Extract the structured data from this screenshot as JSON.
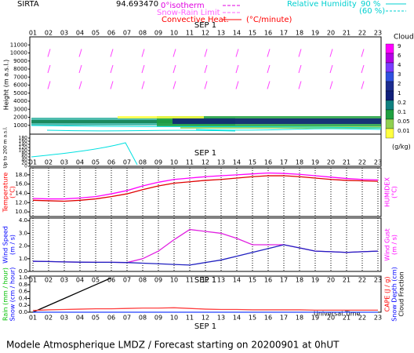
{
  "header": {
    "station": "SIRTA",
    "code": "94.693470",
    "isotherm": "0°isotherm",
    "snow_rain": "Snow-Rain Limit",
    "convective": "Convective Heat.",
    "convective_unit": "(°C/minute)",
    "rh": "Relative Humidity",
    "rh_high": "90 %",
    "rh_low": "(60 %)"
  },
  "date_label": "SEP  1",
  "time_label": "Universal Time",
  "footer": "Modele Atmospherique LMDZ / Forecast starting on 20200901 at 0hUT",
  "chart_data": [
    {
      "type": "contour",
      "categories": [
        "01",
        "02",
        "03",
        "04",
        "05",
        "06",
        "07",
        "08",
        "09",
        "10",
        "11",
        "12",
        "13",
        "14",
        "15",
        "16",
        "17",
        "18",
        "19",
        "20",
        "21",
        "22",
        "23"
      ],
      "ylabel": "Height  (m a.s.l.)",
      "ylim": [
        0,
        12000
      ],
      "yticks": [
        1000,
        2000,
        3000,
        4000,
        5000,
        6000,
        7000,
        8000,
        9000,
        10000,
        11000
      ],
      "low_label": "Up to 200 m a.s.l.",
      "low_ylim": [
        0,
        200
      ],
      "low_yticks": [
        0,
        20,
        40,
        60,
        80,
        100,
        120,
        140,
        160,
        180
      ],
      "colorbar_title": "Clouds",
      "colorbar_unit": "(g/kg)",
      "colorbar_levels": [
        9,
        6,
        4,
        3,
        2,
        1,
        0.2,
        0.1,
        0.05,
        0.01
      ],
      "colorbar_colors": [
        "#ff00ff",
        "#b400e6",
        "#7a3cff",
        "#3050e0",
        "#1c2c90",
        "#10207a",
        "#108080",
        "#20a040",
        "#90d050",
        "#ffff40"
      ]
    },
    {
      "type": "line",
      "categories": [
        "01",
        "02",
        "03",
        "04",
        "05",
        "06",
        "07",
        "08",
        "09",
        "10",
        "11",
        "12",
        "13",
        "14",
        "15",
        "16",
        "17",
        "18",
        "19",
        "20",
        "21",
        "22",
        "23"
      ],
      "ylim": [
        9,
        19.5
      ],
      "yticks": [
        {
          "value": 10,
          "label": "10.0"
        },
        {
          "value": 12,
          "label": "12.0"
        },
        {
          "value": 14,
          "label": "14.0"
        },
        {
          "value": 16,
          "label": "16.0"
        },
        {
          "value": 18,
          "label": "18.0"
        }
      ],
      "grid": true,
      "left_labels": [
        {
          "text": "Temperature",
          "color": "#ff0000"
        },
        {
          "text": "(°C)",
          "color": "#ff0000"
        }
      ],
      "right_labels": [
        {
          "text": "HUMIDEX",
          "color": "#ff00ff"
        },
        {
          "text": "(°C)",
          "color": "#ff00ff"
        }
      ],
      "series": [
        {
          "color": "#ff00ff",
          "values": [
            12.9,
            12.8,
            12.8,
            13.0,
            13.3,
            13.9,
            14.6,
            15.6,
            16.4,
            17.0,
            17.3,
            17.6,
            17.8,
            18.0,
            18.2,
            18.4,
            18.3,
            18.1,
            17.8,
            17.5,
            17.2,
            17.0,
            16.9
          ]
        },
        {
          "color": "#e00000",
          "values": [
            12.5,
            12.4,
            12.3,
            12.5,
            12.8,
            13.3,
            13.9,
            14.8,
            15.6,
            16.2,
            16.5,
            16.8,
            17.0,
            17.3,
            17.6,
            17.8,
            17.8,
            17.6,
            17.3,
            17.0,
            16.8,
            16.7,
            16.6
          ]
        }
      ]
    },
    {
      "type": "line",
      "categories": [
        "01",
        "02",
        "03",
        "04",
        "05",
        "06",
        "07",
        "08",
        "09",
        "10",
        "11",
        "12",
        "13",
        "14",
        "15",
        "16",
        "17",
        "18",
        "19",
        "20",
        "21",
        "22",
        "23"
      ],
      "ylim": [
        0,
        4.2
      ],
      "yticks": [
        {
          "value": 0,
          "label": "0.0"
        },
        {
          "value": 1,
          "label": "1.0"
        },
        {
          "value": 2,
          "label": "2.0"
        },
        {
          "value": 3,
          "label": "3.0"
        },
        {
          "value": 4,
          "label": "4.0"
        }
      ],
      "grid": true,
      "left_labels": [
        {
          "text": "Wind Speed",
          "color": "#0000ff"
        },
        {
          "text": "(m / s)",
          "color": "#0000ff"
        }
      ],
      "right_labels": [
        {
          "text": "Wind Gust",
          "color": "#ff00ff"
        },
        {
          "text": "(m / s)",
          "color": "#ff00ff"
        }
      ],
      "series": [
        {
          "color": "#e020e0",
          "values": [
            0.8,
            0.78,
            0.75,
            0.73,
            0.72,
            0.72,
            0.7,
            1.0,
            1.6,
            2.5,
            3.3,
            3.15,
            3.0,
            2.6,
            2.1,
            2.1,
            2.1,
            1.85,
            1.6,
            1.55,
            1.5,
            1.55,
            1.6
          ]
        },
        {
          "color": "#2020c0",
          "values": [
            0.8,
            0.78,
            0.75,
            0.73,
            0.72,
            0.72,
            0.7,
            0.65,
            0.6,
            0.55,
            0.5,
            0.7,
            0.9,
            1.2,
            1.5,
            1.8,
            2.1,
            1.85,
            1.6,
            1.55,
            1.5,
            1.55,
            1.6
          ]
        }
      ]
    },
    {
      "type": "line",
      "categories": [
        "01",
        "02",
        "03",
        "04",
        "05",
        "06",
        "07",
        "08",
        "09",
        "10",
        "11",
        "12",
        "13",
        "14",
        "15",
        "16",
        "17",
        "18",
        "19",
        "20",
        "21",
        "22",
        "23"
      ],
      "ylim": [
        0,
        1.05
      ],
      "yticks": [
        {
          "value": 0,
          "label": "0.0"
        },
        0.2,
        0.4,
        0.6,
        0.8,
        {
          "value": 1,
          "label": "1.0"
        }
      ],
      "grid": false,
      "left_labels": [
        {
          "text": "Rain (mm / hour)",
          "color": "#00c000"
        },
        {
          "text": "Snow (cm / hour)",
          "color": "#0000ff"
        }
      ],
      "right_labels": [
        {
          "text": "CAPE (J / g)",
          "color": "#ff0000"
        },
        {
          "text": "Snow Depth (cm)",
          "color": "#0000ff"
        },
        {
          "text": "Cloud Fraction",
          "color": "#000000"
        }
      ],
      "series": [
        {
          "color": "#000000",
          "values": [
            0,
            0.2,
            0.4,
            0.6,
            0.8,
            1.0,
            null,
            null,
            null,
            null,
            null,
            null,
            null,
            null,
            null,
            null,
            null,
            null,
            null,
            null,
            null,
            null,
            null
          ]
        },
        {
          "color": "#ff4040",
          "values": [
            0.05,
            0.07,
            0.08,
            0.09,
            0.1,
            0.1,
            0.11,
            0.12,
            0.12,
            0.13,
            0.11,
            0.09,
            0.08,
            0.08,
            0.07,
            0.07,
            0.07,
            0.07,
            0.06,
            0.06,
            0.06,
            0.06,
            0.06
          ]
        },
        {
          "color": "#2040ff",
          "values": [
            0,
            0,
            0,
            0,
            0,
            0,
            0,
            0,
            0,
            0,
            0,
            0,
            0,
            0,
            0,
            0,
            0,
            0,
            0,
            0,
            0,
            0,
            0
          ]
        }
      ]
    }
  ]
}
